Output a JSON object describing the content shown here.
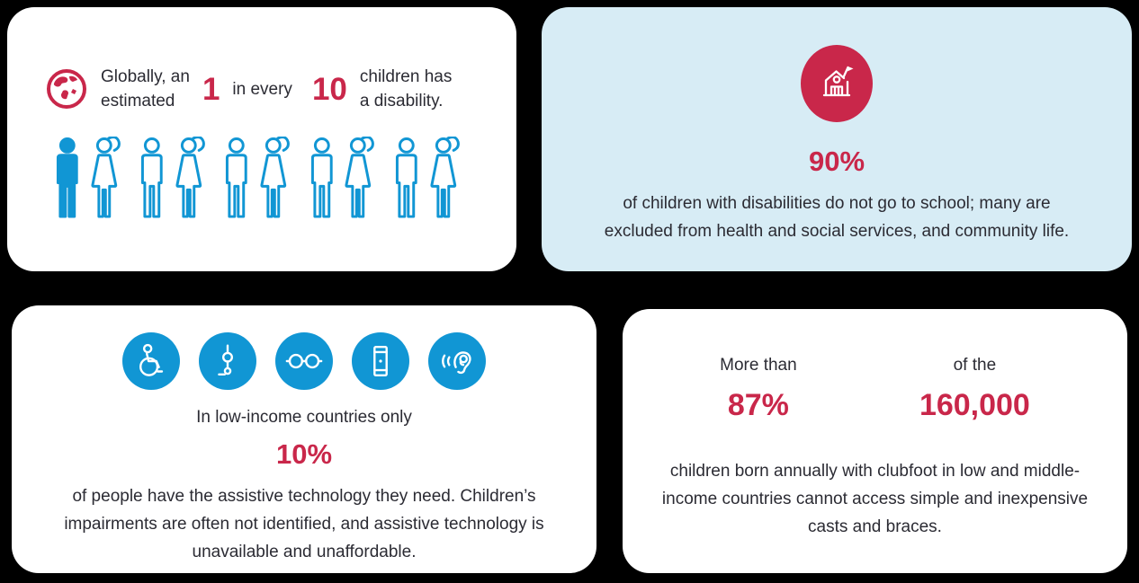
{
  "colors": {
    "red": "#c9274a",
    "blue": "#1196d4",
    "light_blue_card_bg": "#d7ecf5",
    "card_bg": "#ffffff",
    "page_bg": "#000000",
    "text_dark": "#2b2b33"
  },
  "card1": {
    "icon": "globe-icon",
    "intro_line1": "Globally, an",
    "intro_line2": "estimated",
    "stat1": "1",
    "middle_text": "in every",
    "stat2": "10",
    "tail_line1": "children has",
    "tail_line2": "a disability.",
    "people": [
      {
        "type": "male",
        "filled": true
      },
      {
        "type": "female",
        "filled": false
      },
      {
        "type": "male",
        "filled": false
      },
      {
        "type": "female",
        "filled": false
      },
      {
        "type": "male",
        "filled": false
      },
      {
        "type": "female",
        "filled": false
      },
      {
        "type": "male",
        "filled": false
      },
      {
        "type": "female",
        "filled": false
      },
      {
        "type": "male",
        "filled": false
      },
      {
        "type": "female",
        "filled": false
      }
    ]
  },
  "card2": {
    "icon": "school-icon",
    "stat": "90%",
    "line1": "of children with disabilities do not go to school; many are",
    "line2": "excluded from health and social services, and community life."
  },
  "card3": {
    "icons": [
      "wheelchair-icon",
      "prosthetic-leg-icon",
      "glasses-icon",
      "phone-device-icon",
      "hearing-ear-icon"
    ],
    "intro": "In low-income countries only",
    "stat": "10%",
    "line1": "of people have the assistive technology they need. Children’s",
    "line2": "impairments are often not identified, and assistive technology is",
    "line3": "unavailable and unaffordable."
  },
  "card4": {
    "col1_label": "More than",
    "col1_stat": "87%",
    "col2_label": "of the",
    "col2_stat": "160,000",
    "line1": "children born annually with clubfoot in low and middle-",
    "line2": "income countries cannot access simple and inexpensive",
    "line3": "casts and braces."
  }
}
